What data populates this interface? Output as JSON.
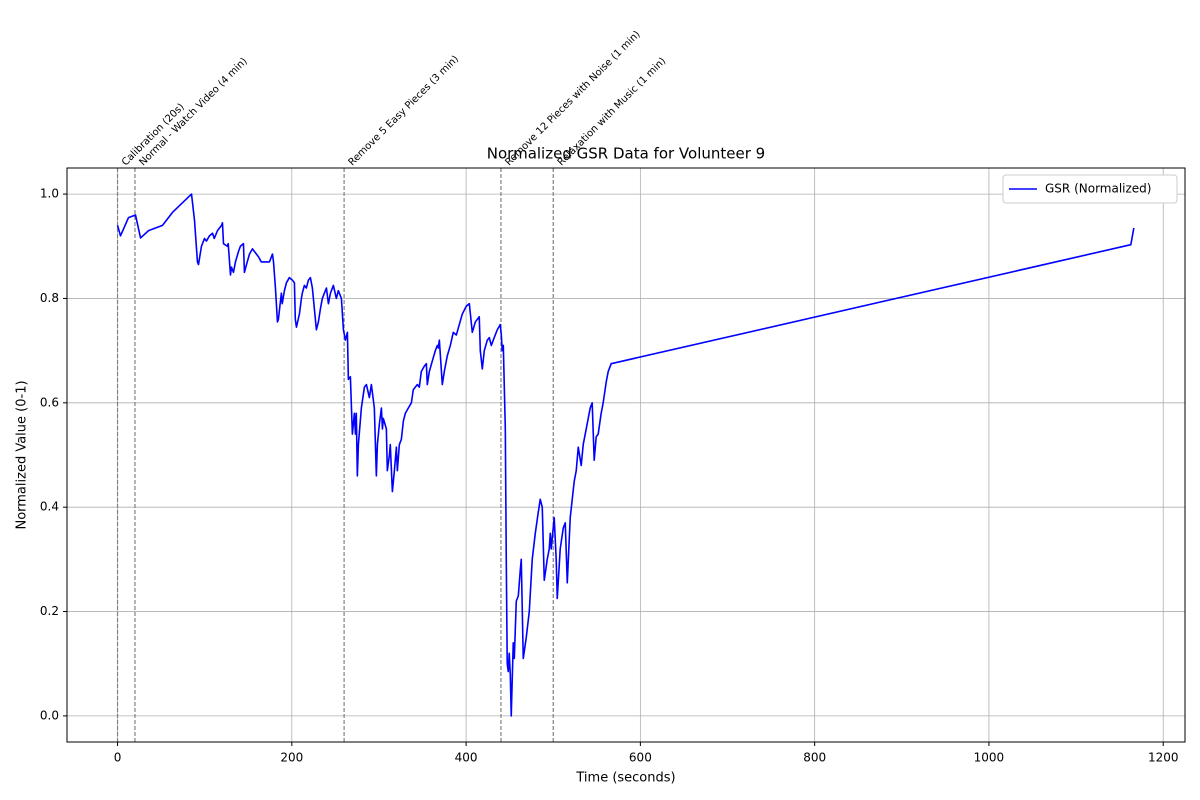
{
  "chart_data": {
    "type": "line",
    "title": "Normalized GSR Data for Volunteer 9",
    "xlabel": "Time (seconds)",
    "ylabel": "Normalized Value (0-1)",
    "xlim": [
      -58,
      1225
    ],
    "ylim": [
      -0.05,
      1.05
    ],
    "xticks": [
      0,
      200,
      400,
      600,
      800,
      1000,
      1200
    ],
    "yticks": [
      {
        "value": 0,
        "label": "0.0"
      },
      0.2,
      0.4,
      0.6,
      0.8,
      {
        "value": 1,
        "label": "1.0"
      }
    ],
    "grid": true,
    "legend": "upper right",
    "events": [
      {
        "x": 0,
        "label": "Calibration (20s)"
      },
      {
        "x": 20,
        "label": "Normal - Watch Video (4 min)"
      },
      {
        "x": 260,
        "label": "Remove 5 Easy Pieces (3 min)"
      },
      {
        "x": 440,
        "label": "Remove 12 Pieces with Noise (1 min)"
      },
      {
        "x": 500,
        "label": "Relaxation with Music (1 min)"
      }
    ],
    "x": [
      0,
      3.4,
      12.6,
      20.6,
      26.4,
      35.6,
      51.6,
      63.1,
      84.9,
      88.3,
      91.7,
      92.9,
      96.3,
      99.8,
      102,
      105.5,
      109,
      111,
      114.7,
      119.3,
      120.4,
      121.6,
      126,
      127,
      129.6,
      130.7,
      133,
      135.3,
      138.8,
      141,
      144.5,
      145.6,
      148,
      151.4,
      154.8,
      161.7,
      165,
      174.3,
      177.8,
      179,
      181.2,
      183.5,
      184.6,
      188,
      189,
      191.5,
      193.8,
      197.2,
      200.7,
      203,
      204,
      205.3,
      208.7,
      211,
      212,
      214.4,
      216.7,
      219,
      221.3,
      223.6,
      225.9,
      228.2,
      230.5,
      232.8,
      235,
      238.5,
      239.7,
      242,
      244.3,
      247.7,
      251.1,
      253.4,
      256.9,
      259.2,
      261.5,
      263.8,
      264.9,
      267.2,
      269.5,
      271.8,
      273,
      274,
      275.2,
      276.4,
      279.8,
      283.3,
      285.6,
      289,
      291.3,
      294.7,
      297,
      298.2,
      300.5,
      302.8,
      304,
      305,
      308.5,
      309.6,
      312,
      313,
      315.4,
      317.7,
      320,
      321.1,
      323.4,
      325.7,
      328,
      330.3,
      333.7,
      337.2,
      339.4,
      344,
      346.3,
      348.6,
      352,
      354.4,
      355.5,
      357.8,
      361.2,
      364.7,
      367,
      368.1,
      369.3,
      372.7,
      375,
      378.4,
      381.9,
      385.3,
      388.8,
      392.2,
      395.6,
      400.2,
      403.7,
      407.1,
      410.6,
      415.1,
      416.3,
      418.6,
      420.9,
      424.3,
      426.6,
      428.9,
      432.3,
      435.8,
      439.2,
      440.4,
      441.5,
      442.7,
      445,
      446.1,
      447.2,
      448.4,
      449.5,
      450.7,
      451.8,
      454.1,
      455.3,
      457.6,
      459.9,
      462.2,
      463.3,
      465.6,
      469,
      472.5,
      475.9,
      479.4,
      482.8,
      485.1,
      487.4,
      489.7,
      493.1,
      495.4,
      496.6,
      497.7,
      501.1,
      503.4,
      504.6,
      508,
      511.5,
      513.8,
      516.1,
      519.5,
      524.1,
      526.4,
      528.7,
      532.1,
      534.4,
      539,
      542.4,
      544.7,
      547,
      549.3,
      551.6,
      555,
      557.3,
      560.8,
      563.1,
      566.5,
      1162.8,
      1166.3
    ],
    "series": [
      {
        "name": "GSR (Normalized)",
        "color": "#0000ff",
        "values": [
          0.94,
          0.92,
          0.955,
          0.96,
          0.916,
          0.93,
          0.94,
          0.965,
          1.0,
          0.95,
          0.87,
          0.865,
          0.9,
          0.915,
          0.91,
          0.92,
          0.925,
          0.915,
          0.93,
          0.94,
          0.945,
          0.905,
          0.9,
          0.905,
          0.845,
          0.86,
          0.85,
          0.87,
          0.89,
          0.9,
          0.905,
          0.85,
          0.865,
          0.885,
          0.895,
          0.88,
          0.87,
          0.87,
          0.885,
          0.87,
          0.82,
          0.755,
          0.76,
          0.81,
          0.79,
          0.815,
          0.83,
          0.84,
          0.835,
          0.83,
          0.76,
          0.745,
          0.77,
          0.8,
          0.81,
          0.825,
          0.82,
          0.835,
          0.84,
          0.82,
          0.78,
          0.74,
          0.755,
          0.78,
          0.8,
          0.815,
          0.82,
          0.79,
          0.81,
          0.825,
          0.8,
          0.815,
          0.8,
          0.74,
          0.72,
          0.735,
          0.645,
          0.65,
          0.54,
          0.58,
          0.54,
          0.58,
          0.46,
          0.52,
          0.59,
          0.63,
          0.635,
          0.61,
          0.635,
          0.59,
          0.46,
          0.52,
          0.56,
          0.59,
          0.55,
          0.57,
          0.55,
          0.47,
          0.5,
          0.52,
          0.43,
          0.47,
          0.515,
          0.47,
          0.52,
          0.53,
          0.565,
          0.58,
          0.59,
          0.6,
          0.625,
          0.635,
          0.63,
          0.66,
          0.67,
          0.675,
          0.635,
          0.66,
          0.68,
          0.7,
          0.71,
          0.705,
          0.72,
          0.635,
          0.66,
          0.69,
          0.71,
          0.735,
          0.73,
          0.75,
          0.77,
          0.785,
          0.79,
          0.735,
          0.755,
          0.765,
          0.7,
          0.665,
          0.7,
          0.72,
          0.725,
          0.71,
          0.725,
          0.74,
          0.75,
          0.73,
          0.7,
          0.71,
          0.55,
          0.3,
          0.1,
          0.085,
          0.12,
          0.08,
          0.0,
          0.14,
          0.11,
          0.22,
          0.23,
          0.28,
          0.3,
          0.11,
          0.15,
          0.2,
          0.3,
          0.35,
          0.39,
          0.415,
          0.4,
          0.26,
          0.3,
          0.32,
          0.35,
          0.32,
          0.38,
          0.3,
          0.225,
          0.32,
          0.36,
          0.37,
          0.255,
          0.38,
          0.45,
          0.47,
          0.515,
          0.48,
          0.52,
          0.56,
          0.59,
          0.6,
          0.49,
          0.535,
          0.54,
          0.58,
          0.6,
          0.64,
          0.66,
          0.675,
          0.903,
          0.935
        ]
      }
    ]
  }
}
